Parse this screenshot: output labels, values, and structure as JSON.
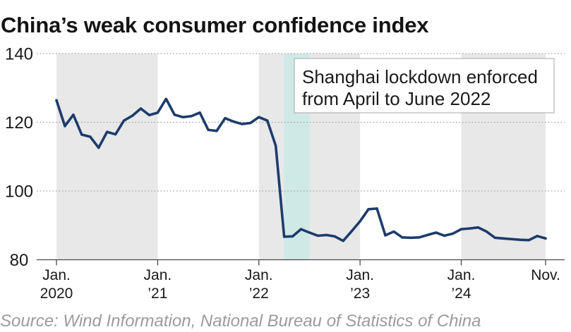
{
  "chart_data": {
    "type": "line",
    "title": "China’s weak consumer confidence index",
    "x": [
      "2020-01",
      "2020-02",
      "2020-03",
      "2020-04",
      "2020-05",
      "2020-06",
      "2020-07",
      "2020-08",
      "2020-09",
      "2020-10",
      "2020-11",
      "2020-12",
      "2021-01",
      "2021-02",
      "2021-03",
      "2021-04",
      "2021-05",
      "2021-06",
      "2021-07",
      "2021-08",
      "2021-09",
      "2021-10",
      "2021-11",
      "2021-12",
      "2022-01",
      "2022-02",
      "2022-03",
      "2022-04",
      "2022-05",
      "2022-06",
      "2022-07",
      "2022-08",
      "2022-09",
      "2022-10",
      "2022-11",
      "2022-12",
      "2023-01",
      "2023-02",
      "2023-03",
      "2023-04",
      "2023-05",
      "2023-06",
      "2023-07",
      "2023-08",
      "2023-09",
      "2023-10",
      "2023-11",
      "2023-12",
      "2024-01",
      "2024-02",
      "2024-03",
      "2024-04",
      "2024-05",
      "2024-06",
      "2024-07",
      "2024-08",
      "2024-09",
      "2024-10",
      "2024-11"
    ],
    "series": [
      {
        "values": [
          126.4,
          118.9,
          122.2,
          116.4,
          115.8,
          112.6,
          117.2,
          116.5,
          120.5,
          121.9,
          124.0,
          122.1,
          122.8,
          126.8,
          122.2,
          121.5,
          121.8,
          122.8,
          117.8,
          117.5,
          121.2,
          120.2,
          119.5,
          119.8,
          121.5,
          120.5,
          113.2,
          86.7,
          86.8,
          88.9,
          87.9,
          87.0,
          87.2,
          86.8,
          85.5,
          88.3,
          91.2,
          94.7,
          94.9,
          87.1,
          88.2,
          86.5,
          86.4,
          86.5,
          87.2,
          87.9,
          87.0,
          87.6,
          88.9,
          89.1,
          89.4,
          88.2,
          86.4,
          86.2,
          86.0,
          85.8,
          85.7,
          86.9,
          86.2
        ]
      }
    ],
    "ylim": [
      80,
      140
    ],
    "yticks": [
      80,
      100,
      120,
      140
    ],
    "xticks": [
      {
        "x": "2020-01",
        "label": "Jan.",
        "sublabel": "2020"
      },
      {
        "x": "2021-01",
        "label": "Jan.",
        "sublabel": "’21"
      },
      {
        "x": "2022-01",
        "label": "Jan.",
        "sublabel": "’22"
      },
      {
        "x": "2023-01",
        "label": "Jan.",
        "sublabel": "’23"
      },
      {
        "x": "2024-01",
        "label": "Jan.",
        "sublabel": "’24"
      },
      {
        "x": "2024-11",
        "label": "Nov."
      }
    ],
    "shaded_years": [
      "2020",
      "2022",
      "2024"
    ],
    "highlight": {
      "start": "2022-04",
      "end": "2022-06",
      "lines": [
        "Shanghai lockdown enforced",
        "from April to June 2022"
      ]
    },
    "grid": true,
    "colors": {
      "line": "#1d3c6c",
      "year_band": "#e8e8e8",
      "highlight_band": "#cfe9e6"
    }
  },
  "source": "Source: Wind Information, National Bureau of Statistics of China"
}
